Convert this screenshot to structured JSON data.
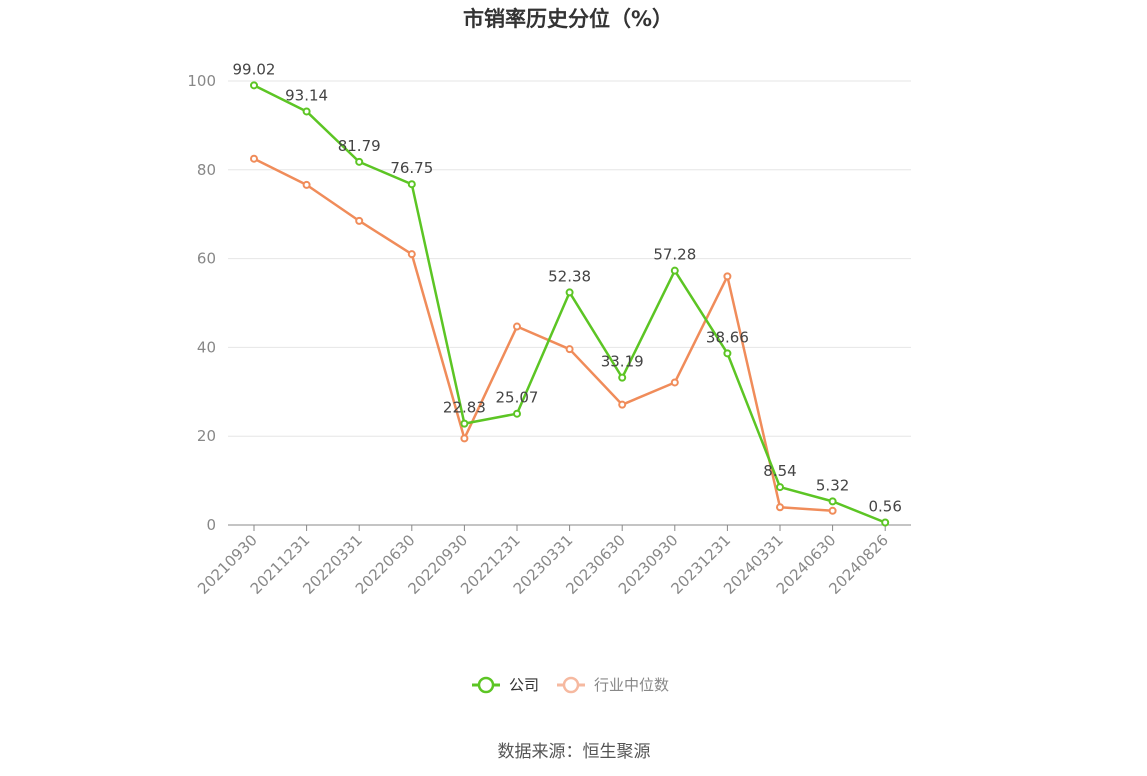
{
  "chart_data": {
    "type": "line",
    "title": "市销率历史分位（%）",
    "source": "数据来源：恒生聚源",
    "x": [
      "20210930",
      "20211231",
      "20220331",
      "20220630",
      "20220930",
      "20221231",
      "20230331",
      "20230630",
      "20230930",
      "20231231",
      "20240331",
      "20240630",
      "20240826"
    ],
    "ylim": [
      0,
      100
    ],
    "yticks": [
      0,
      20,
      40,
      60,
      80,
      100
    ],
    "grid": true,
    "legend_position": "bottom",
    "series": [
      {
        "name": "公司",
        "color": "#5cc524",
        "values": [
          99.02,
          93.14,
          81.79,
          76.75,
          22.83,
          25.07,
          52.38,
          33.19,
          57.28,
          38.66,
          8.54,
          5.32,
          0.56
        ],
        "labels": [
          "99.02",
          "93.14",
          "81.79",
          "76.75",
          "22.83",
          "25.07",
          "52.38",
          "33.19",
          "57.28",
          "38.66",
          "8.54",
          "5.32",
          "0.56"
        ]
      },
      {
        "name": "行业中位数",
        "color": "#f08c5a",
        "legend_color": "#f6b9a0",
        "values": [
          82.5,
          76.6,
          68.5,
          61.0,
          19.5,
          44.7,
          39.6,
          27.1,
          32.1,
          56.0,
          4.0,
          3.2,
          null
        ]
      }
    ]
  }
}
